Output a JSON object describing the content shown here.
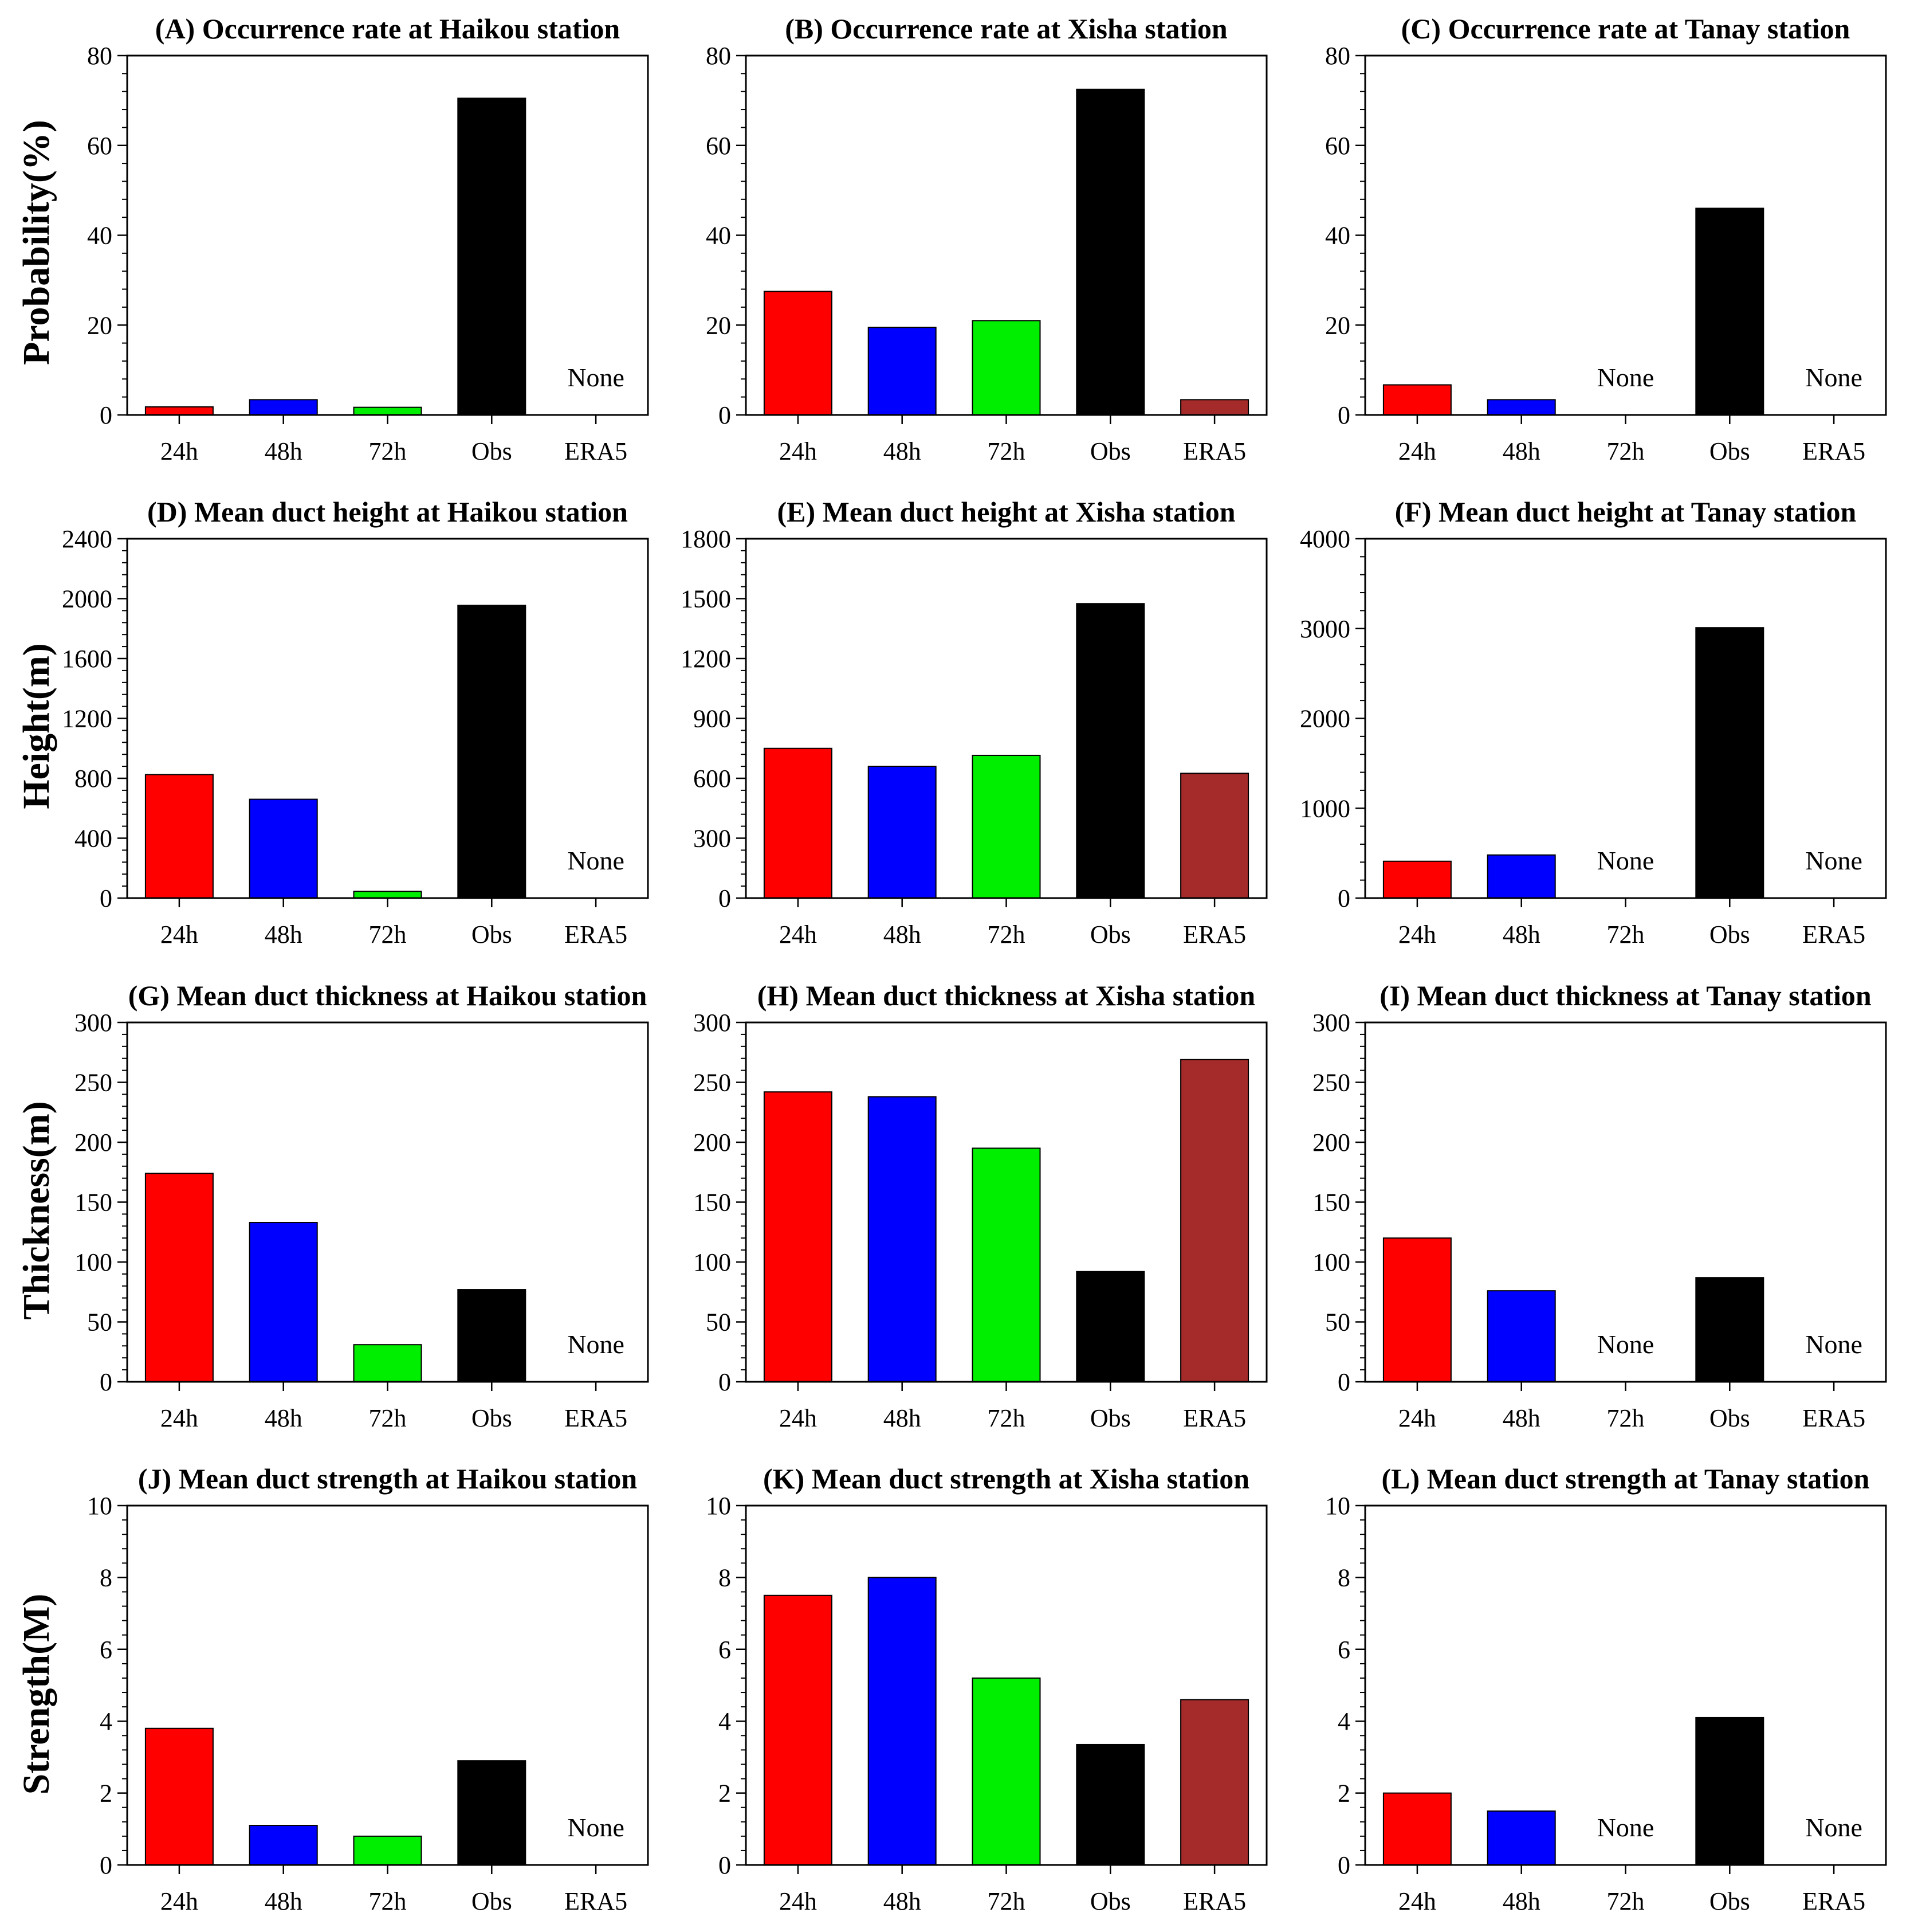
{
  "categories": [
    "24h",
    "48h",
    "72h",
    "Obs",
    "ERA5"
  ],
  "colors": {
    "24h": "#ff0000",
    "48h": "#0000ff",
    "72h": "#00ee00",
    "Obs": "#000000",
    "ERA5": "#a52a2a"
  },
  "none_text": "None",
  "row_labels": [
    "Probability(%)",
    "Height(m)",
    "Thickness(m)",
    "Strength(M)"
  ],
  "chart_data": [
    {
      "type": "bar",
      "title": "(A) Occurrence rate at Haikou station",
      "categories": [
        "24h",
        "48h",
        "72h",
        "Obs",
        "ERA5"
      ],
      "values": [
        1.8,
        3.4,
        1.7,
        70.5,
        null
      ],
      "ylim": [
        0,
        80
      ],
      "yticks": [
        0,
        20,
        40,
        60,
        80
      ],
      "ylabel": "Probability(%)"
    },
    {
      "type": "bar",
      "title": "(B) Occurrence rate at Xisha station",
      "categories": [
        "24h",
        "48h",
        "72h",
        "Obs",
        "ERA5"
      ],
      "values": [
        27.5,
        19.5,
        21,
        72.5,
        3.4
      ],
      "ylim": [
        0,
        80
      ],
      "yticks": [
        0,
        20,
        40,
        60,
        80
      ]
    },
    {
      "type": "bar",
      "title": "(C) Occurrence rate at Tanay station",
      "categories": [
        "24h",
        "48h",
        "72h",
        "Obs",
        "ERA5"
      ],
      "values": [
        6.7,
        3.4,
        null,
        46,
        null
      ],
      "ylim": [
        0,
        80
      ],
      "yticks": [
        0,
        20,
        40,
        60,
        80
      ]
    },
    {
      "type": "bar",
      "title": "(D) Mean duct height at Haikou station",
      "categories": [
        "24h",
        "48h",
        "72h",
        "Obs",
        "ERA5"
      ],
      "values": [
        825,
        660,
        45,
        1955,
        null
      ],
      "ylim": [
        0,
        2400
      ],
      "yticks": [
        0,
        400,
        800,
        1200,
        1600,
        2000,
        2400
      ],
      "ylabel": "Height(m)"
    },
    {
      "type": "bar",
      "title": "(E) Mean duct height at Xisha station",
      "categories": [
        "24h",
        "48h",
        "72h",
        "Obs",
        "ERA5"
      ],
      "values": [
        750,
        660,
        715,
        1475,
        625
      ],
      "ylim": [
        0,
        1800
      ],
      "yticks": [
        0,
        300,
        600,
        900,
        1200,
        1500,
        1800
      ]
    },
    {
      "type": "bar",
      "title": "(F) Mean duct height at Tanay station",
      "categories": [
        "24h",
        "48h",
        "72h",
        "Obs",
        "ERA5"
      ],
      "values": [
        410,
        480,
        null,
        3010,
        null
      ],
      "ylim": [
        0,
        4000
      ],
      "yticks": [
        0,
        1000,
        2000,
        3000,
        4000
      ]
    },
    {
      "type": "bar",
      "title": "(G) Mean duct thickness at Haikou station",
      "categories": [
        "24h",
        "48h",
        "72h",
        "Obs",
        "ERA5"
      ],
      "values": [
        174,
        133,
        31,
        77,
        null
      ],
      "ylim": [
        0,
        300
      ],
      "yticks": [
        0,
        50,
        100,
        150,
        200,
        250,
        300
      ],
      "ylabel": "Thickness(m)"
    },
    {
      "type": "bar",
      "title": "(H) Mean duct thickness at Xisha station",
      "categories": [
        "24h",
        "48h",
        "72h",
        "Obs",
        "ERA5"
      ],
      "values": [
        242,
        238,
        195,
        92,
        269
      ],
      "ylim": [
        0,
        300
      ],
      "yticks": [
        0,
        50,
        100,
        150,
        200,
        250,
        300
      ]
    },
    {
      "type": "bar",
      "title": "(I) Mean duct thickness at Tanay station",
      "categories": [
        "24h",
        "48h",
        "72h",
        "Obs",
        "ERA5"
      ],
      "values": [
        120,
        76,
        null,
        87,
        null
      ],
      "ylim": [
        0,
        300
      ],
      "yticks": [
        0,
        50,
        100,
        150,
        200,
        250,
        300
      ]
    },
    {
      "type": "bar",
      "title": "(J) Mean duct strength at Haikou station",
      "categories": [
        "24h",
        "48h",
        "72h",
        "Obs",
        "ERA5"
      ],
      "values": [
        3.8,
        1.1,
        0.8,
        2.9,
        null
      ],
      "ylim": [
        0,
        10
      ],
      "yticks": [
        0,
        2,
        4,
        6,
        8,
        10
      ],
      "ylabel": "Strength(M)"
    },
    {
      "type": "bar",
      "title": "(K) Mean duct strength at Xisha station",
      "categories": [
        "24h",
        "48h",
        "72h",
        "Obs",
        "ERA5"
      ],
      "values": [
        7.5,
        8.0,
        5.2,
        3.35,
        4.6
      ],
      "ylim": [
        0,
        10
      ],
      "yticks": [
        0,
        2,
        4,
        6,
        8,
        10
      ]
    },
    {
      "type": "bar",
      "title": "(L) Mean duct strength at Tanay station",
      "categories": [
        "24h",
        "48h",
        "72h",
        "Obs",
        "ERA5"
      ],
      "values": [
        2.0,
        1.5,
        null,
        4.1,
        null
      ],
      "ylim": [
        0,
        10
      ],
      "yticks": [
        0,
        2,
        4,
        6,
        8,
        10
      ]
    }
  ]
}
